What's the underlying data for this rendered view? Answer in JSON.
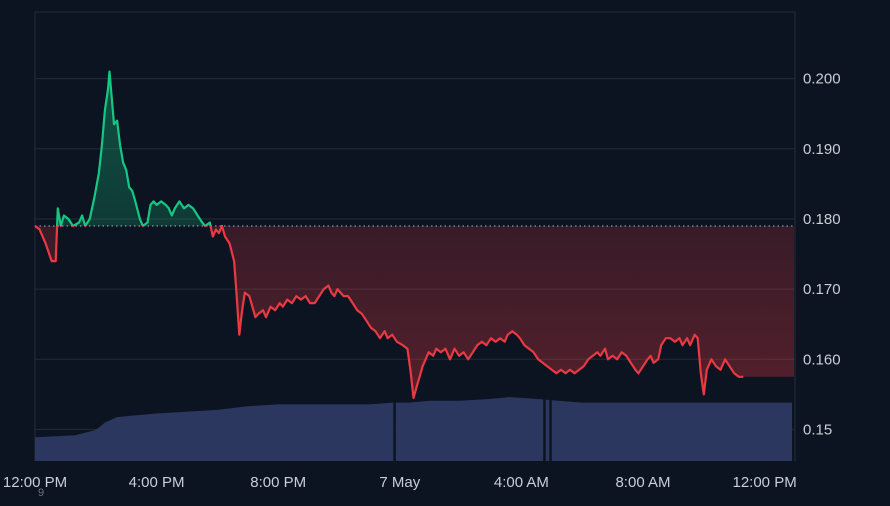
{
  "colors": {
    "background": "#0d1421",
    "grid": "#222b38",
    "up_line": "#16c784",
    "down_line": "#ea3943",
    "baseline": "#8a94a6",
    "volume": "#2e3963",
    "tick_text": "#c9ced6"
  },
  "chart_data": {
    "type": "area",
    "baseline_value": 0.179,
    "y_axis_side": "right",
    "ylim": [
      0.1455,
      0.2095
    ],
    "yticks": [
      {
        "value": 0.2,
        "label": "0.200"
      },
      {
        "value": 0.19,
        "label": "0.190"
      },
      {
        "value": 0.18,
        "label": "0.180"
      },
      {
        "value": 0.17,
        "label": "0.170"
      },
      {
        "value": 0.16,
        "label": "0.160"
      },
      {
        "value": 0.15,
        "label": "0.15"
      }
    ],
    "x_unit": "hours",
    "xlim": [
      0,
      25
    ],
    "xticks": [
      {
        "x": 0,
        "label": "12:00 PM"
      },
      {
        "x": 4,
        "label": "4:00 PM"
      },
      {
        "x": 8,
        "label": "8:00 PM"
      },
      {
        "x": 12,
        "label": "7 May"
      },
      {
        "x": 16,
        "label": "4:00 AM"
      },
      {
        "x": 20,
        "label": "8:00 AM"
      },
      {
        "x": 24,
        "label": "12:00 PM"
      }
    ],
    "grid": true,
    "price_series": [
      [
        0.0,
        0.179
      ],
      [
        0.15,
        0.1785
      ],
      [
        0.35,
        0.1765
      ],
      [
        0.55,
        0.174
      ],
      [
        0.68,
        0.174
      ],
      [
        0.75,
        0.1815
      ],
      [
        0.85,
        0.179
      ],
      [
        0.95,
        0.1805
      ],
      [
        1.1,
        0.18
      ],
      [
        1.25,
        0.179
      ],
      [
        1.45,
        0.1795
      ],
      [
        1.55,
        0.1805
      ],
      [
        1.65,
        0.179
      ],
      [
        1.8,
        0.18
      ],
      [
        1.95,
        0.183
      ],
      [
        2.1,
        0.1865
      ],
      [
        2.2,
        0.1905
      ],
      [
        2.3,
        0.1955
      ],
      [
        2.4,
        0.1985
      ],
      [
        2.45,
        0.201
      ],
      [
        2.52,
        0.1975
      ],
      [
        2.6,
        0.1935
      ],
      [
        2.7,
        0.194
      ],
      [
        2.8,
        0.1905
      ],
      [
        2.9,
        0.188
      ],
      [
        3.0,
        0.187
      ],
      [
        3.1,
        0.1845
      ],
      [
        3.2,
        0.184
      ],
      [
        3.3,
        0.1825
      ],
      [
        3.45,
        0.18
      ],
      [
        3.55,
        0.179
      ],
      [
        3.7,
        0.1795
      ],
      [
        3.8,
        0.182
      ],
      [
        3.9,
        0.1825
      ],
      [
        4.0,
        0.182
      ],
      [
        4.15,
        0.1825
      ],
      [
        4.3,
        0.182
      ],
      [
        4.4,
        0.1815
      ],
      [
        4.5,
        0.1805
      ],
      [
        4.6,
        0.1815
      ],
      [
        4.75,
        0.1825
      ],
      [
        4.9,
        0.1815
      ],
      [
        5.05,
        0.182
      ],
      [
        5.2,
        0.1815
      ],
      [
        5.35,
        0.1805
      ],
      [
        5.5,
        0.1795
      ],
      [
        5.6,
        0.179
      ],
      [
        5.75,
        0.1795
      ],
      [
        5.85,
        0.1775
      ],
      [
        5.95,
        0.1785
      ],
      [
        6.05,
        0.178
      ],
      [
        6.15,
        0.179
      ],
      [
        6.25,
        0.1775
      ],
      [
        6.4,
        0.1765
      ],
      [
        6.55,
        0.174
      ],
      [
        6.62,
        0.17
      ],
      [
        6.72,
        0.1635
      ],
      [
        6.8,
        0.1665
      ],
      [
        6.9,
        0.1695
      ],
      [
        7.05,
        0.169
      ],
      [
        7.15,
        0.1675
      ],
      [
        7.25,
        0.166
      ],
      [
        7.35,
        0.1665
      ],
      [
        7.5,
        0.167
      ],
      [
        7.6,
        0.166
      ],
      [
        7.75,
        0.1675
      ],
      [
        7.9,
        0.167
      ],
      [
        8.05,
        0.168
      ],
      [
        8.15,
        0.1675
      ],
      [
        8.3,
        0.1685
      ],
      [
        8.45,
        0.168
      ],
      [
        8.6,
        0.169
      ],
      [
        8.75,
        0.1685
      ],
      [
        8.9,
        0.169
      ],
      [
        9.05,
        0.168
      ],
      [
        9.2,
        0.168
      ],
      [
        9.35,
        0.169
      ],
      [
        9.5,
        0.17
      ],
      [
        9.65,
        0.1705
      ],
      [
        9.75,
        0.1695
      ],
      [
        9.85,
        0.169
      ],
      [
        9.95,
        0.17
      ],
      [
        10.05,
        0.1695
      ],
      [
        10.15,
        0.169
      ],
      [
        10.3,
        0.169
      ],
      [
        10.45,
        0.168
      ],
      [
        10.6,
        0.167
      ],
      [
        10.75,
        0.1665
      ],
      [
        10.9,
        0.1655
      ],
      [
        11.05,
        0.1645
      ],
      [
        11.2,
        0.164
      ],
      [
        11.35,
        0.163
      ],
      [
        11.5,
        0.164
      ],
      [
        11.6,
        0.163
      ],
      [
        11.75,
        0.1635
      ],
      [
        11.9,
        0.1625
      ],
      [
        12.1,
        0.162
      ],
      [
        12.25,
        0.1615
      ],
      [
        12.35,
        0.1585
      ],
      [
        12.45,
        0.1545
      ],
      [
        12.55,
        0.156
      ],
      [
        12.65,
        0.1575
      ],
      [
        12.75,
        0.159
      ],
      [
        12.85,
        0.16
      ],
      [
        12.95,
        0.161
      ],
      [
        13.1,
        0.1605
      ],
      [
        13.2,
        0.1615
      ],
      [
        13.35,
        0.161
      ],
      [
        13.5,
        0.1615
      ],
      [
        13.65,
        0.16
      ],
      [
        13.8,
        0.1615
      ],
      [
        13.95,
        0.1605
      ],
      [
        14.1,
        0.161
      ],
      [
        14.25,
        0.16
      ],
      [
        14.4,
        0.161
      ],
      [
        14.55,
        0.162
      ],
      [
        14.7,
        0.1625
      ],
      [
        14.85,
        0.162
      ],
      [
        15.0,
        0.163
      ],
      [
        15.15,
        0.1625
      ],
      [
        15.3,
        0.163
      ],
      [
        15.45,
        0.1625
      ],
      [
        15.55,
        0.1635
      ],
      [
        15.7,
        0.164
      ],
      [
        15.85,
        0.1635
      ],
      [
        15.95,
        0.163
      ],
      [
        16.1,
        0.162
      ],
      [
        16.25,
        0.1615
      ],
      [
        16.4,
        0.161
      ],
      [
        16.55,
        0.16
      ],
      [
        16.7,
        0.1595
      ],
      [
        16.85,
        0.159
      ],
      [
        17.0,
        0.1585
      ],
      [
        17.15,
        0.158
      ],
      [
        17.3,
        0.1585
      ],
      [
        17.45,
        0.158
      ],
      [
        17.6,
        0.1585
      ],
      [
        17.75,
        0.158
      ],
      [
        17.9,
        0.1585
      ],
      [
        18.05,
        0.159
      ],
      [
        18.2,
        0.16
      ],
      [
        18.35,
        0.1605
      ],
      [
        18.5,
        0.161
      ],
      [
        18.6,
        0.1605
      ],
      [
        18.75,
        0.1615
      ],
      [
        18.85,
        0.16
      ],
      [
        19.0,
        0.1605
      ],
      [
        19.15,
        0.16
      ],
      [
        19.3,
        0.161
      ],
      [
        19.45,
        0.1605
      ],
      [
        19.6,
        0.1595
      ],
      [
        19.75,
        0.1585
      ],
      [
        19.85,
        0.158
      ],
      [
        20.0,
        0.159
      ],
      [
        20.15,
        0.16
      ],
      [
        20.25,
        0.1605
      ],
      [
        20.35,
        0.1595
      ],
      [
        20.5,
        0.16
      ],
      [
        20.6,
        0.162
      ],
      [
        20.75,
        0.163
      ],
      [
        20.9,
        0.163
      ],
      [
        21.05,
        0.1625
      ],
      [
        21.2,
        0.163
      ],
      [
        21.3,
        0.162
      ],
      [
        21.45,
        0.163
      ],
      [
        21.55,
        0.162
      ],
      [
        21.7,
        0.1635
      ],
      [
        21.8,
        0.163
      ],
      [
        21.9,
        0.158
      ],
      [
        22.0,
        0.155
      ],
      [
        22.1,
        0.1585
      ],
      [
        22.25,
        0.16
      ],
      [
        22.4,
        0.159
      ],
      [
        22.55,
        0.1585
      ],
      [
        22.7,
        0.16
      ],
      [
        22.85,
        0.159
      ],
      [
        23.0,
        0.158
      ],
      [
        23.15,
        0.1575
      ],
      [
        23.3,
        0.1575
      ]
    ],
    "volume_relative": [
      [
        0.0,
        0.13
      ],
      [
        1.3,
        0.14
      ],
      [
        2.0,
        0.17
      ],
      [
        2.3,
        0.21
      ],
      [
        2.7,
        0.24
      ],
      [
        3.3,
        0.25
      ],
      [
        4.0,
        0.26
      ],
      [
        5.0,
        0.27
      ],
      [
        6.0,
        0.28
      ],
      [
        7.0,
        0.3
      ],
      [
        8.0,
        0.31
      ],
      [
        9.0,
        0.31
      ],
      [
        10.0,
        0.31
      ],
      [
        11.0,
        0.31
      ],
      [
        11.8,
        0.32
      ],
      [
        12.3,
        0.32
      ],
      [
        13.0,
        0.33
      ],
      [
        14.0,
        0.33
      ],
      [
        15.0,
        0.34
      ],
      [
        15.6,
        0.35
      ],
      [
        16.5,
        0.34
      ],
      [
        17.2,
        0.33
      ],
      [
        18.0,
        0.32
      ],
      [
        19.0,
        0.32
      ],
      [
        20.0,
        0.32
      ],
      [
        21.0,
        0.32
      ],
      [
        22.0,
        0.32
      ],
      [
        23.3,
        0.32
      ]
    ],
    "volume_gaps": [
      11.82,
      16.75,
      16.95
    ]
  },
  "footer_mark": "9"
}
